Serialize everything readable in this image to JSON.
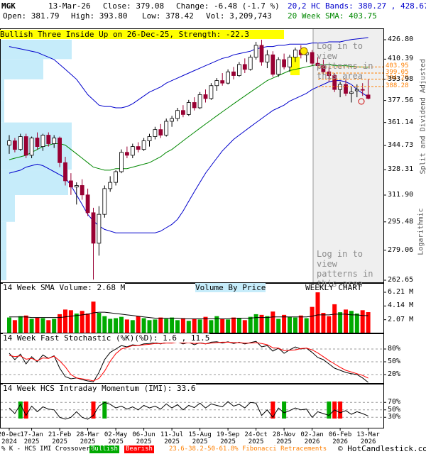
{
  "header": {
    "ticker": "MGK",
    "date": "13-Mar-26",
    "close": "Close: 379.08",
    "change": "Change: -6.48 (-1.7 %)",
    "open": "Open: 381.79",
    "high": "High: 393.80",
    "low": "Low: 378.42",
    "volume": "Vol: 3,209,743"
  },
  "chart_data": [
    {
      "type": "candlestick",
      "title": "Bullish Three Inside Up on 26-Dec-25, Strength: -22.3",
      "y_label": "Split and Dividend Adjusted",
      "scale_label": "Logarithmic",
      "log_scale": true,
      "grid": false,
      "watermark": "Log in to view patterns in this area",
      "period": "WEEKLY CHART",
      "categories": [
        "20-Dec 2024",
        null,
        null,
        null,
        "17-Jan 2025",
        null,
        null,
        null,
        null,
        "21-Feb 2025",
        null,
        null,
        null,
        null,
        "28-Mar 2025",
        null,
        null,
        null,
        null,
        "02-May 2025",
        null,
        null,
        null,
        null,
        "06-Jun 2025",
        null,
        null,
        null,
        null,
        "11-Jul 2025",
        null,
        null,
        null,
        null,
        "15-Aug 2025",
        null,
        null,
        null,
        null,
        "19-Sep 2025",
        null,
        null,
        null,
        null,
        "24-Oct 2025",
        null,
        null,
        null,
        null,
        "28-Nov 2025",
        null,
        null,
        null,
        null,
        "02-Jan 2026",
        null,
        null,
        null,
        null,
        "06-Feb 2026",
        null,
        null,
        null,
        null,
        "13-Mar 2026"
      ],
      "open": [
        345,
        348,
        342,
        351,
        338,
        350,
        344,
        352,
        346,
        350,
        333,
        321,
        317,
        318,
        312,
        301,
        283,
        300,
        316,
        320,
        327,
        340,
        338,
        344,
        342,
        348,
        351,
        356,
        352,
        362,
        364,
        370,
        367,
        376,
        372,
        382,
        379,
        389,
        393,
        391,
        400,
        397,
        406,
        402,
        412,
        422,
        408,
        414,
        398,
        410,
        404,
        412,
        418,
        414,
        416,
        407,
        405,
        400,
        397,
        386,
        390,
        383,
        385,
        386,
        381.79
      ],
      "high": [
        352,
        350,
        353,
        353,
        351,
        354,
        353,
        354,
        352,
        351,
        337,
        326,
        320,
        322,
        316,
        304,
        305,
        318,
        324,
        328,
        342,
        344,
        346,
        347,
        350,
        353,
        358,
        360,
        364,
        366,
        372,
        374,
        378,
        380,
        384,
        386,
        391,
        395,
        399,
        402,
        404,
        408,
        411,
        414,
        425,
        426.8,
        418,
        417,
        412,
        415,
        414,
        420,
        422,
        419,
        418,
        412,
        410,
        404,
        399,
        392,
        394,
        388,
        390,
        391,
        393.8
      ],
      "low": [
        339,
        340,
        341,
        336,
        336,
        342,
        341,
        344,
        343,
        330,
        318,
        312,
        306,
        309,
        299,
        263,
        276,
        298,
        314,
        318,
        326,
        336,
        336,
        340,
        341,
        344,
        349,
        350,
        351,
        358,
        362,
        365,
        366,
        370,
        371,
        376,
        378,
        385,
        389,
        390,
        394,
        396,
        399,
        401,
        410,
        405,
        403,
        396,
        396,
        402,
        400,
        408,
        411,
        408,
        405,
        401,
        398,
        392,
        384,
        380,
        381,
        376,
        380,
        381,
        378.42
      ],
      "close": [
        348,
        342,
        351,
        338,
        350,
        344,
        352,
        346,
        350,
        333,
        321,
        317,
        318,
        312,
        301,
        283,
        300,
        316,
        320,
        327,
        340,
        338,
        344,
        342,
        348,
        351,
        356,
        352,
        362,
        364,
        370,
        367,
        376,
        372,
        382,
        379,
        389,
        393,
        391,
        400,
        397,
        406,
        402,
        412,
        422,
        408,
        414,
        398,
        410,
        404,
        412,
        418,
        414,
        416,
        407,
        405,
        400,
        397,
        386,
        390,
        383,
        384,
        386,
        385.56,
        379.08
      ],
      "up_color": "#ffffff",
      "down_color": "#990033",
      "series": [
        {
          "name": "20,2 HC Bands: 380.27 , 428.67",
          "color": "#0000cc",
          "upper": [
            421,
            420,
            419,
            418,
            417,
            416,
            414,
            412,
            410,
            406,
            402,
            398,
            394,
            388,
            382,
            378,
            374,
            373,
            373,
            372,
            372,
            373,
            375,
            378,
            381,
            384,
            386,
            388,
            391,
            393,
            395,
            397,
            399,
            401,
            403,
            405,
            407,
            409,
            411,
            412,
            414,
            415,
            416,
            417,
            419,
            420,
            421,
            421,
            422,
            422,
            423,
            423,
            423,
            423,
            424,
            424,
            424,
            425,
            425,
            425,
            426,
            427,
            427.5,
            428,
            428.67
          ],
          "lower": [
            326,
            327,
            328,
            330,
            331,
            332,
            331,
            329,
            327,
            325,
            323,
            318,
            312,
            306,
            300,
            296,
            293,
            291,
            290,
            289,
            289,
            289,
            289,
            289,
            289,
            289,
            289,
            290,
            292,
            294,
            297,
            302,
            308,
            314,
            320,
            326,
            331,
            336,
            341,
            345,
            349,
            352,
            355,
            358,
            361,
            364,
            367,
            370,
            372,
            374,
            377,
            379,
            381,
            383,
            386,
            388,
            390,
            392,
            393,
            393,
            392,
            390,
            386,
            383,
            380.27
          ]
        },
        {
          "name": "20 Week SMA: 403.75",
          "color": "#008800",
          "values": [
            335,
            336,
            337,
            338,
            340,
            342,
            344,
            345,
            346,
            346,
            345,
            342,
            339,
            336,
            333,
            330,
            329,
            328,
            328,
            329,
            329,
            329,
            330,
            331,
            332,
            333,
            335,
            337,
            340,
            342,
            345,
            348,
            351,
            354,
            357,
            360,
            363,
            366,
            369,
            372,
            375,
            378,
            381,
            384,
            387,
            390,
            393,
            395,
            397,
            399,
            401,
            402,
            403,
            404,
            405,
            406,
            406,
            406,
            405,
            405,
            405,
            404.5,
            404,
            403.9,
            403.75
          ]
        }
      ],
      "fibonacci": {
        "color": "#ff7f00",
        "levels": [
          403.95,
          399.05,
          {
            "value": 394.2,
            "label": "394.20"
          },
          388.28
        ]
      },
      "volume_by_price": {
        "title": "Volume By Price",
        "color": "#c6ecfa",
        "bins": [
          262.65,
          279.06,
          295.48,
          311.9,
          328.31,
          344.73,
          361.14,
          377.56,
          393.98,
          410.39,
          426.8
        ],
        "values": [
          8,
          8,
          20,
          95,
          100,
          100,
          5,
          5,
          60,
          100
        ]
      },
      "ylim": [
        262.65,
        426.8
      ],
      "yticks": [
        {
          "value": 262.65,
          "label": "262.65"
        },
        279.06,
        295.48,
        {
          "value": 311.9,
          "label": "311.90"
        },
        328.31,
        344.73,
        361.14,
        377.56,
        393.98,
        410.39,
        {
          "value": 426.8,
          "label": "426.80"
        }
      ]
    },
    {
      "type": "bar",
      "title": "14 Week SMA Volume: 2.68 M",
      "grid": false,
      "values": [
        2.4,
        2.0,
        2.6,
        2.7,
        2.2,
        2.4,
        2.3,
        2.0,
        2.2,
        2.9,
        3.6,
        3.5,
        3.0,
        3.4,
        3.0,
        4.8,
        3.1,
        2.6,
        2.2,
        2.3,
        2.5,
        2.1,
        2.0,
        2.6,
        2.3,
        2.0,
        2.1,
        2.4,
        2.2,
        2.4,
        2.0,
        2.3,
        1.9,
        2.2,
        2.1,
        2.5,
        2.0,
        2.6,
        2.2,
        2.1,
        2.4,
        2.3,
        2.0,
        2.5,
        2.9,
        2.8,
        2.6,
        3.3,
        2.2,
        2.8,
        2.5,
        2.4,
        2.7,
        2.3,
        4.0,
        6.2,
        3.1,
        2.6,
        4.4,
        3.2,
        3.6,
        3.4,
        3.0,
        3.5,
        3.21
      ],
      "up_color": "#00aa00",
      "down_color": "#ff0000",
      "sma": {
        "color": "#000000",
        "values": [
          2.5,
          2.5,
          2.5,
          2.5,
          2.4,
          2.4,
          2.4,
          2.4,
          2.4,
          2.4,
          2.5,
          2.6,
          2.7,
          2.8,
          2.9,
          3.1,
          3.2,
          3.2,
          3.1,
          3.0,
          2.9,
          2.8,
          2.7,
          2.6,
          2.5,
          2.4,
          2.3,
          2.3,
          2.3,
          2.3,
          2.3,
          2.2,
          2.2,
          2.2,
          2.2,
          2.2,
          2.2,
          2.2,
          2.2,
          2.2,
          2.3,
          2.3,
          2.3,
          2.3,
          2.4,
          2.4,
          2.4,
          2.5,
          2.5,
          2.5,
          2.5,
          2.5,
          2.5,
          2.5,
          2.6,
          2.8,
          2.8,
          2.8,
          2.9,
          2.9,
          2.9,
          2.8,
          2.8,
          2.7,
          2.68
        ]
      },
      "ylim": [
        0,
        6.96
      ],
      "yticks": [
        {
          "value": 2.07,
          "label": "2.07 M"
        },
        {
          "value": 4.14,
          "label": "4.14 M"
        },
        {
          "value": 6.21,
          "label": "6.21 M"
        }
      ]
    },
    {
      "type": "line",
      "title": "14 Week Fast Stochastic (%K)(%D): 1.6 , 11.5",
      "grid": true,
      "series": [
        {
          "color": "#000000",
          "values": [
            70,
            55,
            68,
            45,
            62,
            50,
            66,
            58,
            64,
            35,
            15,
            10,
            12,
            8,
            5,
            3,
            25,
            55,
            72,
            80,
            88,
            85,
            90,
            88,
            92,
            93,
            95,
            92,
            96,
            94,
            97,
            92,
            96,
            90,
            95,
            92,
            96,
            97,
            94,
            97,
            93,
            96,
            92,
            95,
            98,
            85,
            88,
            75,
            82,
            70,
            78,
            85,
            80,
            82,
            72,
            60,
            55,
            45,
            35,
            30,
            25,
            22,
            20,
            12,
            1.6
          ]
        },
        {
          "color": "#ff0000",
          "values": [
            65,
            62,
            64,
            56,
            58,
            52,
            59,
            58,
            63,
            52,
            38,
            20,
            12,
            10,
            8,
            5,
            11,
            28,
            51,
            69,
            80,
            84,
            88,
            88,
            90,
            91,
            93,
            93,
            94,
            94,
            96,
            94,
            95,
            93,
            94,
            92,
            94,
            95,
            96,
            96,
            95,
            95,
            94,
            94,
            95,
            93,
            90,
            83,
            82,
            76,
            77,
            78,
            81,
            82,
            78,
            71,
            62,
            53,
            45,
            37,
            30,
            26,
            22,
            18,
            11.5
          ]
        }
      ],
      "ylim": [
        0,
        100
      ],
      "yticks": [
        {
          "value": 20,
          "label": "20%"
        },
        {
          "value": 50,
          "label": "50%"
        },
        {
          "value": 80,
          "label": "80%"
        }
      ]
    },
    {
      "type": "line",
      "title": "14 Week HCS Intraday Momentum (IMI): 33.6",
      "grid": true,
      "series": [
        {
          "color": "#000000",
          "values": [
            55,
            40,
            65,
            35,
            60,
            45,
            58,
            52,
            50,
            30,
            25,
            30,
            45,
            30,
            25,
            35,
            60,
            70,
            65,
            55,
            60,
            52,
            58,
            50,
            62,
            55,
            60,
            52,
            66,
            55,
            64,
            50,
            62,
            56,
            68,
            55,
            66,
            62,
            58,
            72,
            60,
            65,
            55,
            70,
            68,
            35,
            50,
            30,
            55,
            42,
            48,
            55,
            50,
            52,
            30,
            45,
            40,
            35,
            50,
            42,
            48,
            38,
            45,
            40,
            33.6
          ]
        }
      ],
      "signals": {
        "bullish": {
          "label": "Bullish",
          "color": "#00aa00",
          "at": [
            2,
            17,
            49,
            57
          ]
        },
        "bearish": {
          "label": "Bearish",
          "color": "#ff0000",
          "at": [
            3,
            15,
            47,
            58,
            59
          ]
        }
      },
      "ylim": [
        0,
        100
      ],
      "yticks": [
        {
          "value": 30,
          "label": "30%"
        },
        {
          "value": 50,
          "label": "50%"
        },
        {
          "value": 70,
          "label": "70%"
        }
      ]
    }
  ],
  "footer": {
    "crossover_label": "% K - HCS IMI Crossover:",
    "fibonacci": "23.6-38.2-50-61.8% Fibonacci Retracements",
    "copyright": "© HotCandlestick.com"
  }
}
